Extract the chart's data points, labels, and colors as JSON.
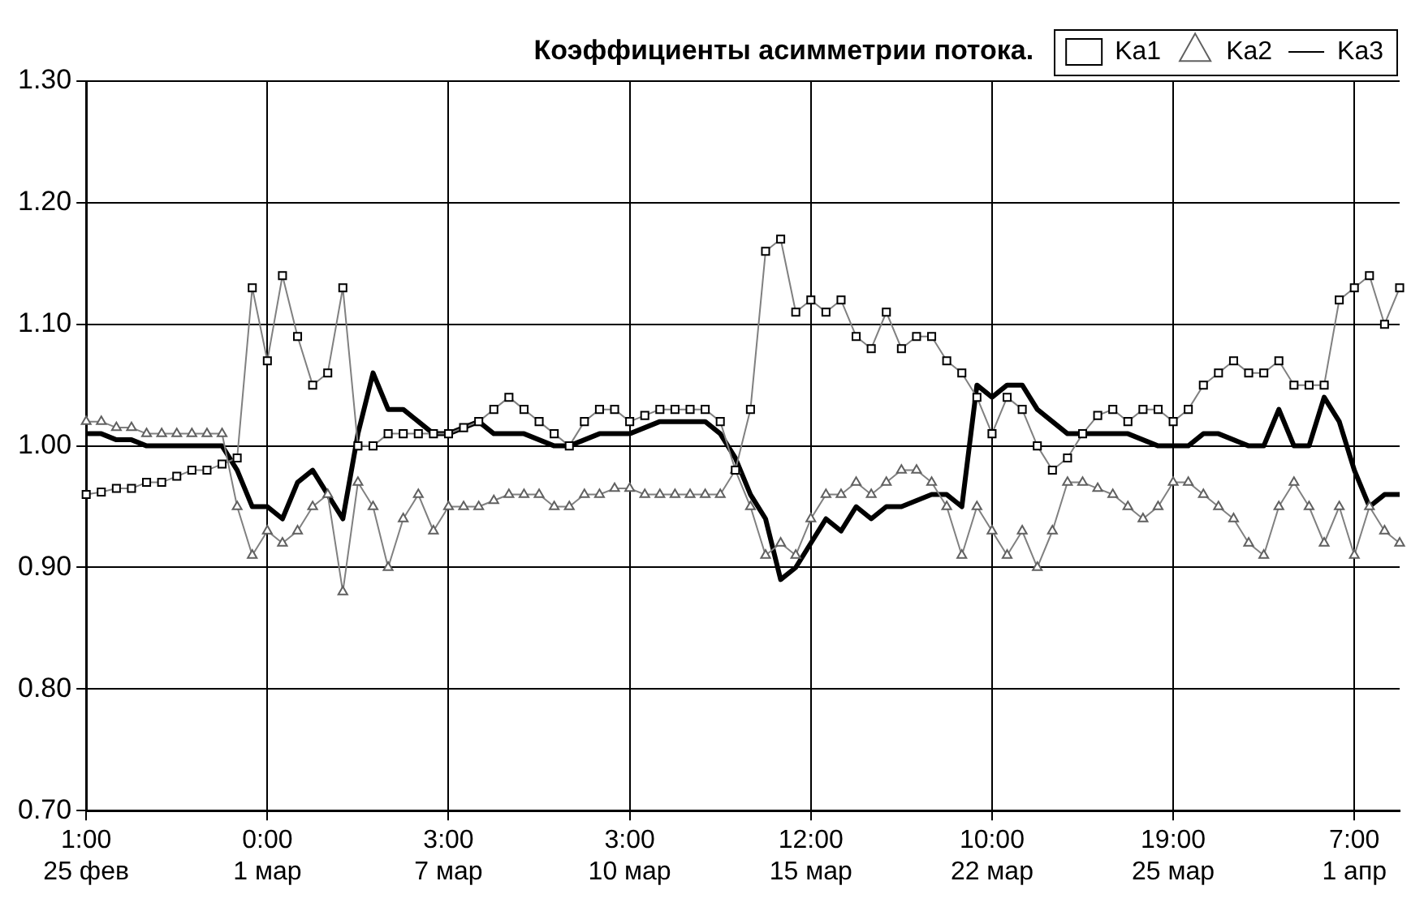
{
  "chart_data": {
    "type": "line",
    "title": "Коэффициенты асимметрии потока.",
    "categories": [
      "1:00\n25 фев",
      null,
      null,
      null,
      null,
      null,
      null,
      null,
      null,
      null,
      null,
      null,
      "0:00\n1 мар",
      null,
      null,
      null,
      null,
      null,
      null,
      null,
      null,
      null,
      null,
      null,
      "3:00\n7 мар",
      null,
      null,
      null,
      null,
      null,
      null,
      null,
      null,
      null,
      null,
      null,
      "3:00\n10 мар",
      null,
      null,
      null,
      null,
      null,
      null,
      null,
      null,
      null,
      null,
      null,
      "12:00\n15 мар",
      null,
      null,
      null,
      null,
      null,
      null,
      null,
      null,
      null,
      null,
      null,
      "10:00\n22 мар",
      null,
      null,
      null,
      null,
      null,
      null,
      null,
      null,
      null,
      null,
      null,
      "19:00\n25 мар",
      null,
      null,
      null,
      null,
      null,
      null,
      null,
      null,
      null,
      null,
      null,
      "7:00\n1 апр",
      null,
      null,
      null
    ],
    "ylim": [
      0.7,
      1.3
    ],
    "yticks": [
      {
        "value": 0.7,
        "label": "0.70"
      },
      {
        "value": 0.8,
        "label": "0.80"
      },
      {
        "value": 0.9,
        "label": "0.90"
      },
      {
        "value": 1.0,
        "label": "1.00"
      },
      {
        "value": 1.1,
        "label": "1.10"
      },
      {
        "value": 1.2,
        "label": "1.20"
      },
      {
        "value": 1.3,
        "label": "1.30"
      }
    ],
    "grid": true,
    "legend": "top right",
    "series": [
      {
        "name": "Ka1",
        "color": "#000000",
        "marker": "square",
        "values": [
          0.96,
          0.962,
          0.965,
          0.965,
          0.97,
          0.97,
          0.975,
          0.98,
          0.98,
          0.985,
          0.99,
          1.13,
          1.07,
          1.14,
          1.09,
          1.05,
          1.06,
          1.13,
          1.0,
          1.0,
          1.01,
          1.01,
          1.01,
          1.01,
          1.01,
          1.015,
          1.02,
          1.03,
          1.04,
          1.03,
          1.02,
          1.01,
          1.0,
          1.02,
          1.03,
          1.03,
          1.02,
          1.025,
          1.03,
          1.03,
          1.03,
          1.03,
          1.02,
          0.98,
          1.03,
          1.16,
          1.17,
          1.11,
          1.12,
          1.11,
          1.12,
          1.09,
          1.08,
          1.11,
          1.08,
          1.09,
          1.09,
          1.07,
          1.06,
          1.04,
          1.01,
          1.04,
          1.03,
          1.0,
          0.98,
          0.99,
          1.01,
          1.025,
          1.03,
          1.02,
          1.03,
          1.03,
          1.02,
          1.03,
          1.05,
          1.06,
          1.07,
          1.06,
          1.06,
          1.07,
          1.05,
          1.05,
          1.05,
          1.12,
          1.13,
          1.14,
          1.1,
          1.13
        ]
      },
      {
        "name": "Ka2",
        "color": "#606060",
        "marker": "triangle",
        "values": [
          1.02,
          1.02,
          1.015,
          1.015,
          1.01,
          1.01,
          1.01,
          1.01,
          1.01,
          1.01,
          0.95,
          0.91,
          0.93,
          0.92,
          0.93,
          0.95,
          0.96,
          0.88,
          0.97,
          0.95,
          0.9,
          0.94,
          0.96,
          0.93,
          0.95,
          0.95,
          0.95,
          0.955,
          0.96,
          0.96,
          0.96,
          0.95,
          0.95,
          0.96,
          0.96,
          0.965,
          0.965,
          0.96,
          0.96,
          0.96,
          0.96,
          0.96,
          0.96,
          0.98,
          0.95,
          0.91,
          0.92,
          0.91,
          0.94,
          0.96,
          0.96,
          0.97,
          0.96,
          0.97,
          0.98,
          0.98,
          0.97,
          0.95,
          0.91,
          0.95,
          0.93,
          0.91,
          0.93,
          0.9,
          0.93,
          0.97,
          0.97,
          0.965,
          0.96,
          0.95,
          0.94,
          0.95,
          0.97,
          0.97,
          0.96,
          0.95,
          0.94,
          0.92,
          0.91,
          0.95,
          0.97,
          0.95,
          0.92,
          0.95,
          0.91,
          0.95,
          0.93,
          0.92
        ]
      },
      {
        "name": "Ka3",
        "color": "#000000",
        "marker": "none",
        "values": [
          1.01,
          1.01,
          1.005,
          1.005,
          1.0,
          1.0,
          1.0,
          1.0,
          1.0,
          1.0,
          0.98,
          0.95,
          0.95,
          0.94,
          0.97,
          0.98,
          0.96,
          0.94,
          1.01,
          1.06,
          1.03,
          1.03,
          1.02,
          1.01,
          1.01,
          1.015,
          1.02,
          1.01,
          1.01,
          1.01,
          1.005,
          1.0,
          1.0,
          1.005,
          1.01,
          1.01,
          1.01,
          1.015,
          1.02,
          1.02,
          1.02,
          1.02,
          1.01,
          0.99,
          0.96,
          0.94,
          0.89,
          0.9,
          0.92,
          0.94,
          0.93,
          0.95,
          0.94,
          0.95,
          0.95,
          0.955,
          0.96,
          0.96,
          0.95,
          1.05,
          1.04,
          1.05,
          1.05,
          1.03,
          1.02,
          1.01,
          1.01,
          1.01,
          1.01,
          1.01,
          1.005,
          1.0,
          1.0,
          1.0,
          1.01,
          1.01,
          1.005,
          1.0,
          1.0,
          1.03,
          1.0,
          1.0,
          1.04,
          1.02,
          0.98,
          0.95,
          0.96,
          0.96
        ]
      }
    ]
  }
}
